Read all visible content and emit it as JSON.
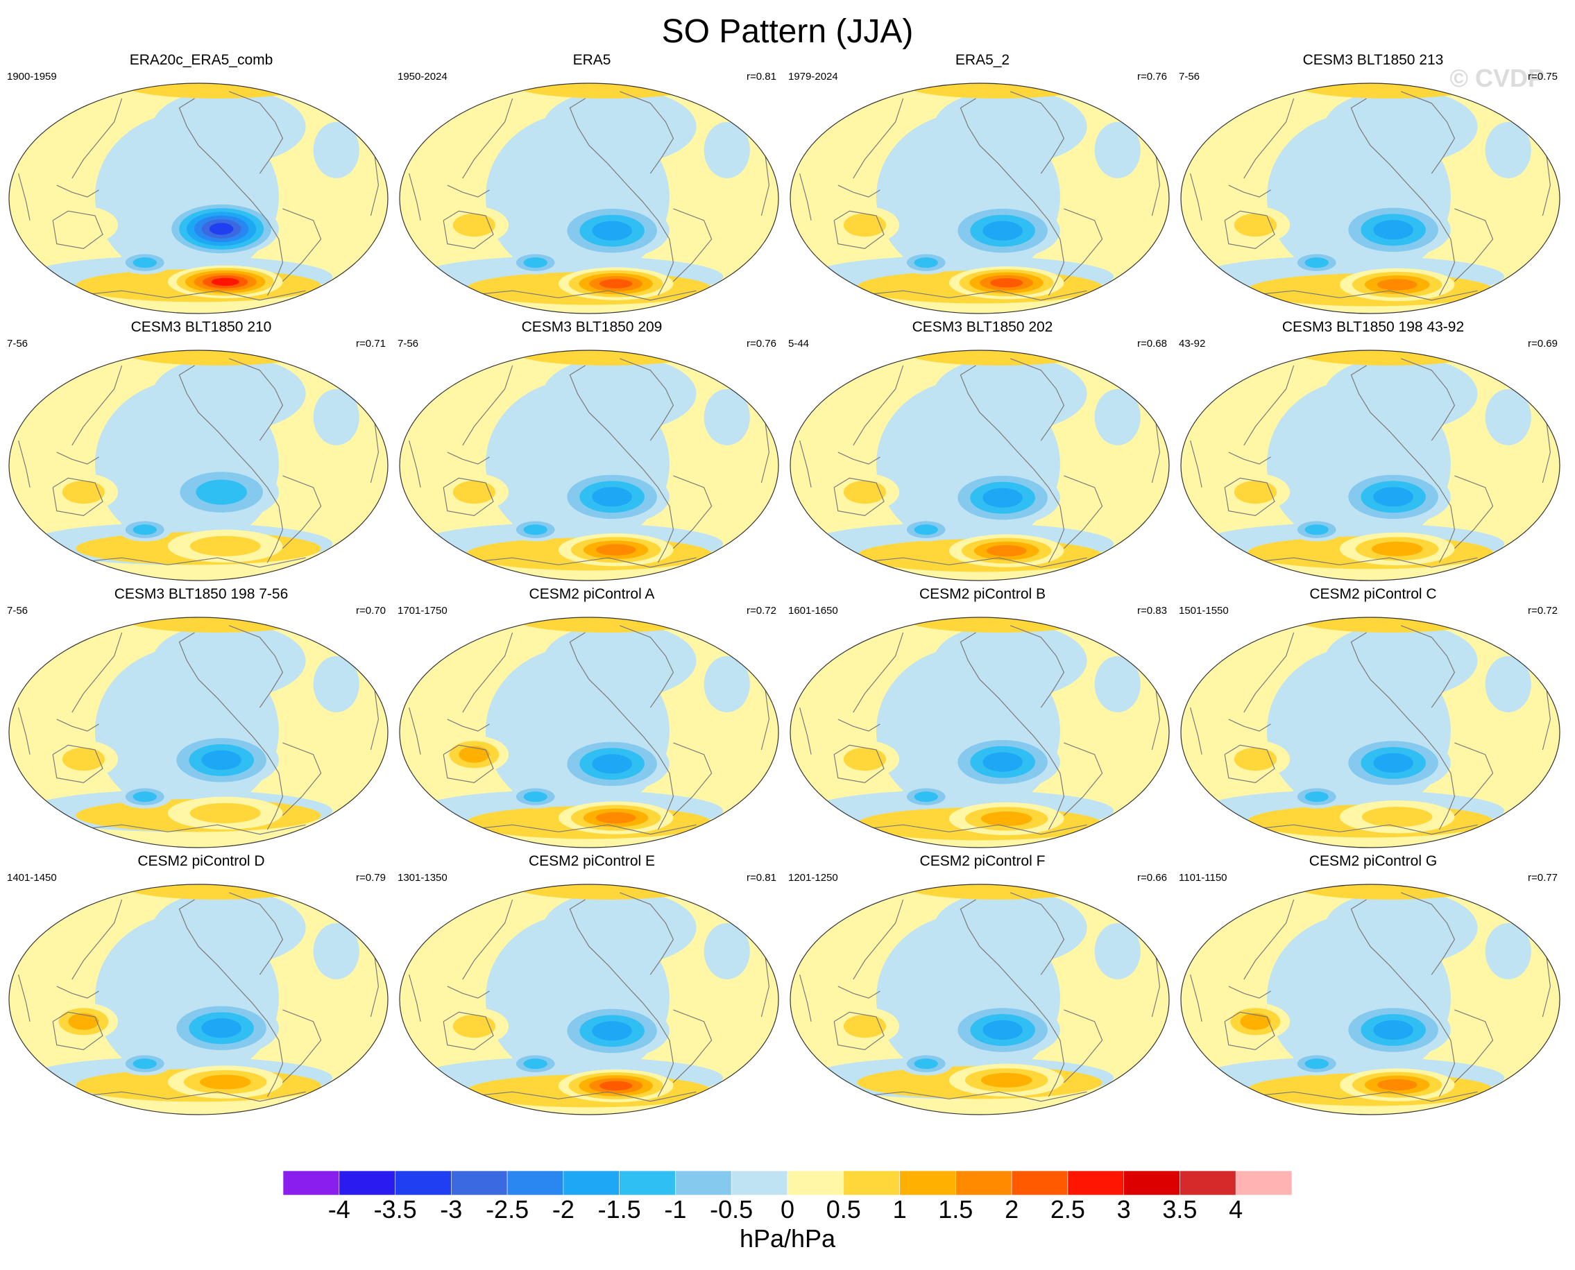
{
  "title": "SO Pattern (JJA)",
  "watermark": "© CVDP",
  "colors": {
    "land_line": "#7a7a7a",
    "outline": "#333333"
  },
  "colorbar": {
    "levels": [
      "-4",
      "-3.5",
      "-3",
      "-2.5",
      "-2",
      "-1.5",
      "-1",
      "-0.5",
      "0",
      "0.5",
      "1",
      "1.5",
      "2",
      "2.5",
      "3",
      "3.5",
      "4"
    ],
    "fill_colors": [
      "#8a1eed",
      "#2a1cf0",
      "#1f3ff0",
      "#3b6ae0",
      "#2a86f0",
      "#1ea7f4",
      "#30bff2",
      "#86c9ee",
      "#bfe3f3",
      "#fff7a6",
      "#ffd73a",
      "#ffb000",
      "#ff8a00",
      "#ff5a00",
      "#ff1500",
      "#dd0000",
      "#d42a2a",
      "#ffb3b3"
    ],
    "units": "hPa/hPa"
  },
  "panels": [
    {
      "title": "ERA20c_ERA5_comb",
      "period": "1900-1959",
      "r": "",
      "neg": -3.5,
      "pos": 3.0,
      "neg_shift": 0.08,
      "pos_shift": 0.06,
      "aus": 0.6
    },
    {
      "title": "ERA5",
      "period": "1950-2024",
      "r": "r=0.81",
      "neg": -2.0,
      "pos": 2.5,
      "neg_shift": 0.12,
      "pos_shift": 0.1,
      "aus": 1.0
    },
    {
      "title": "ERA5_2",
      "period": "1979-2024",
      "r": "r=0.76",
      "neg": -2.0,
      "pos": 2.5,
      "neg_shift": 0.12,
      "pos_shift": 0.08,
      "aus": 1.2
    },
    {
      "title": "CESM3 BLT1850 213",
      "period": "7-56",
      "r": "r=0.75",
      "neg": -2.0,
      "pos": 2.0,
      "neg_shift": 0.1,
      "pos_shift": 0.12,
      "aus": 1.0
    },
    {
      "title": "CESM3 BLT1850 210",
      "period": "7-56",
      "r": "r=0.71",
      "neg": -1.5,
      "pos": 1.0,
      "neg_shift": 0.0,
      "pos_shift": 0.0,
      "aus": 1.0
    },
    {
      "title": "CESM3 BLT1850 209",
      "period": "7-56",
      "r": "r=0.76",
      "neg": -2.0,
      "pos": 2.0,
      "neg_shift": 0.1,
      "pos_shift": 0.08,
      "aus": 1.0
    },
    {
      "title": "CESM3 BLT1850 202",
      "period": "5-44",
      "r": "r=0.68",
      "neg": -2.0,
      "pos": 2.0,
      "neg_shift": 0.12,
      "pos_shift": 0.1,
      "aus": 1.0
    },
    {
      "title": "CESM3 BLT1850 198 43-92",
      "period": "43-92",
      "r": "r=0.69",
      "neg": -2.0,
      "pos": 1.5,
      "neg_shift": 0.1,
      "pos_shift": 0.06,
      "aus": 1.0
    },
    {
      "title": "CESM3 BLT1850 198 7-56",
      "period": "7-56",
      "r": "r=0.70",
      "neg": -2.0,
      "pos": 1.0,
      "neg_shift": 0.02,
      "pos_shift": 0.0,
      "aus": 1.0
    },
    {
      "title": "CESM2 piControl A",
      "period": "1701-1750",
      "r": "r=0.72",
      "neg": -2.0,
      "pos": 2.0,
      "neg_shift": 0.1,
      "pos_shift": 0.1,
      "aus": 1.5
    },
    {
      "title": "CESM2 piControl B",
      "period": "1601-1650",
      "r": "r=0.83",
      "neg": -2.0,
      "pos": 1.5,
      "neg_shift": 0.06,
      "pos_shift": 0.12,
      "aus": 0.8
    },
    {
      "title": "CESM2 piControl C",
      "period": "1501-1550",
      "r": "r=0.72",
      "neg": -2.0,
      "pos": 1.0,
      "neg_shift": 0.08,
      "pos_shift": 0.08,
      "aus": 1.0
    },
    {
      "title": "CESM2 piControl D",
      "period": "1401-1450",
      "r": "r=0.79",
      "neg": -2.0,
      "pos": 1.5,
      "neg_shift": 0.04,
      "pos_shift": 0.04,
      "aus": 1.3
    },
    {
      "title": "CESM2 piControl E",
      "period": "1301-1350",
      "r": "r=0.81",
      "neg": -2.0,
      "pos": 2.5,
      "neg_shift": 0.1,
      "pos_shift": 0.12,
      "aus": 1.0
    },
    {
      "title": "CESM2 piControl F",
      "period": "1201-1250",
      "r": "r=0.66",
      "neg": -2.0,
      "pos": 1.5,
      "neg_shift": 0.08,
      "pos_shift": 0.0,
      "aus": 1.0
    },
    {
      "title": "CESM2 piControl G",
      "period": "1101-1150",
      "r": "r=0.77",
      "neg": -2.0,
      "pos": 2.0,
      "neg_shift": 0.08,
      "pos_shift": 0.1,
      "aus": 1.3
    }
  ]
}
